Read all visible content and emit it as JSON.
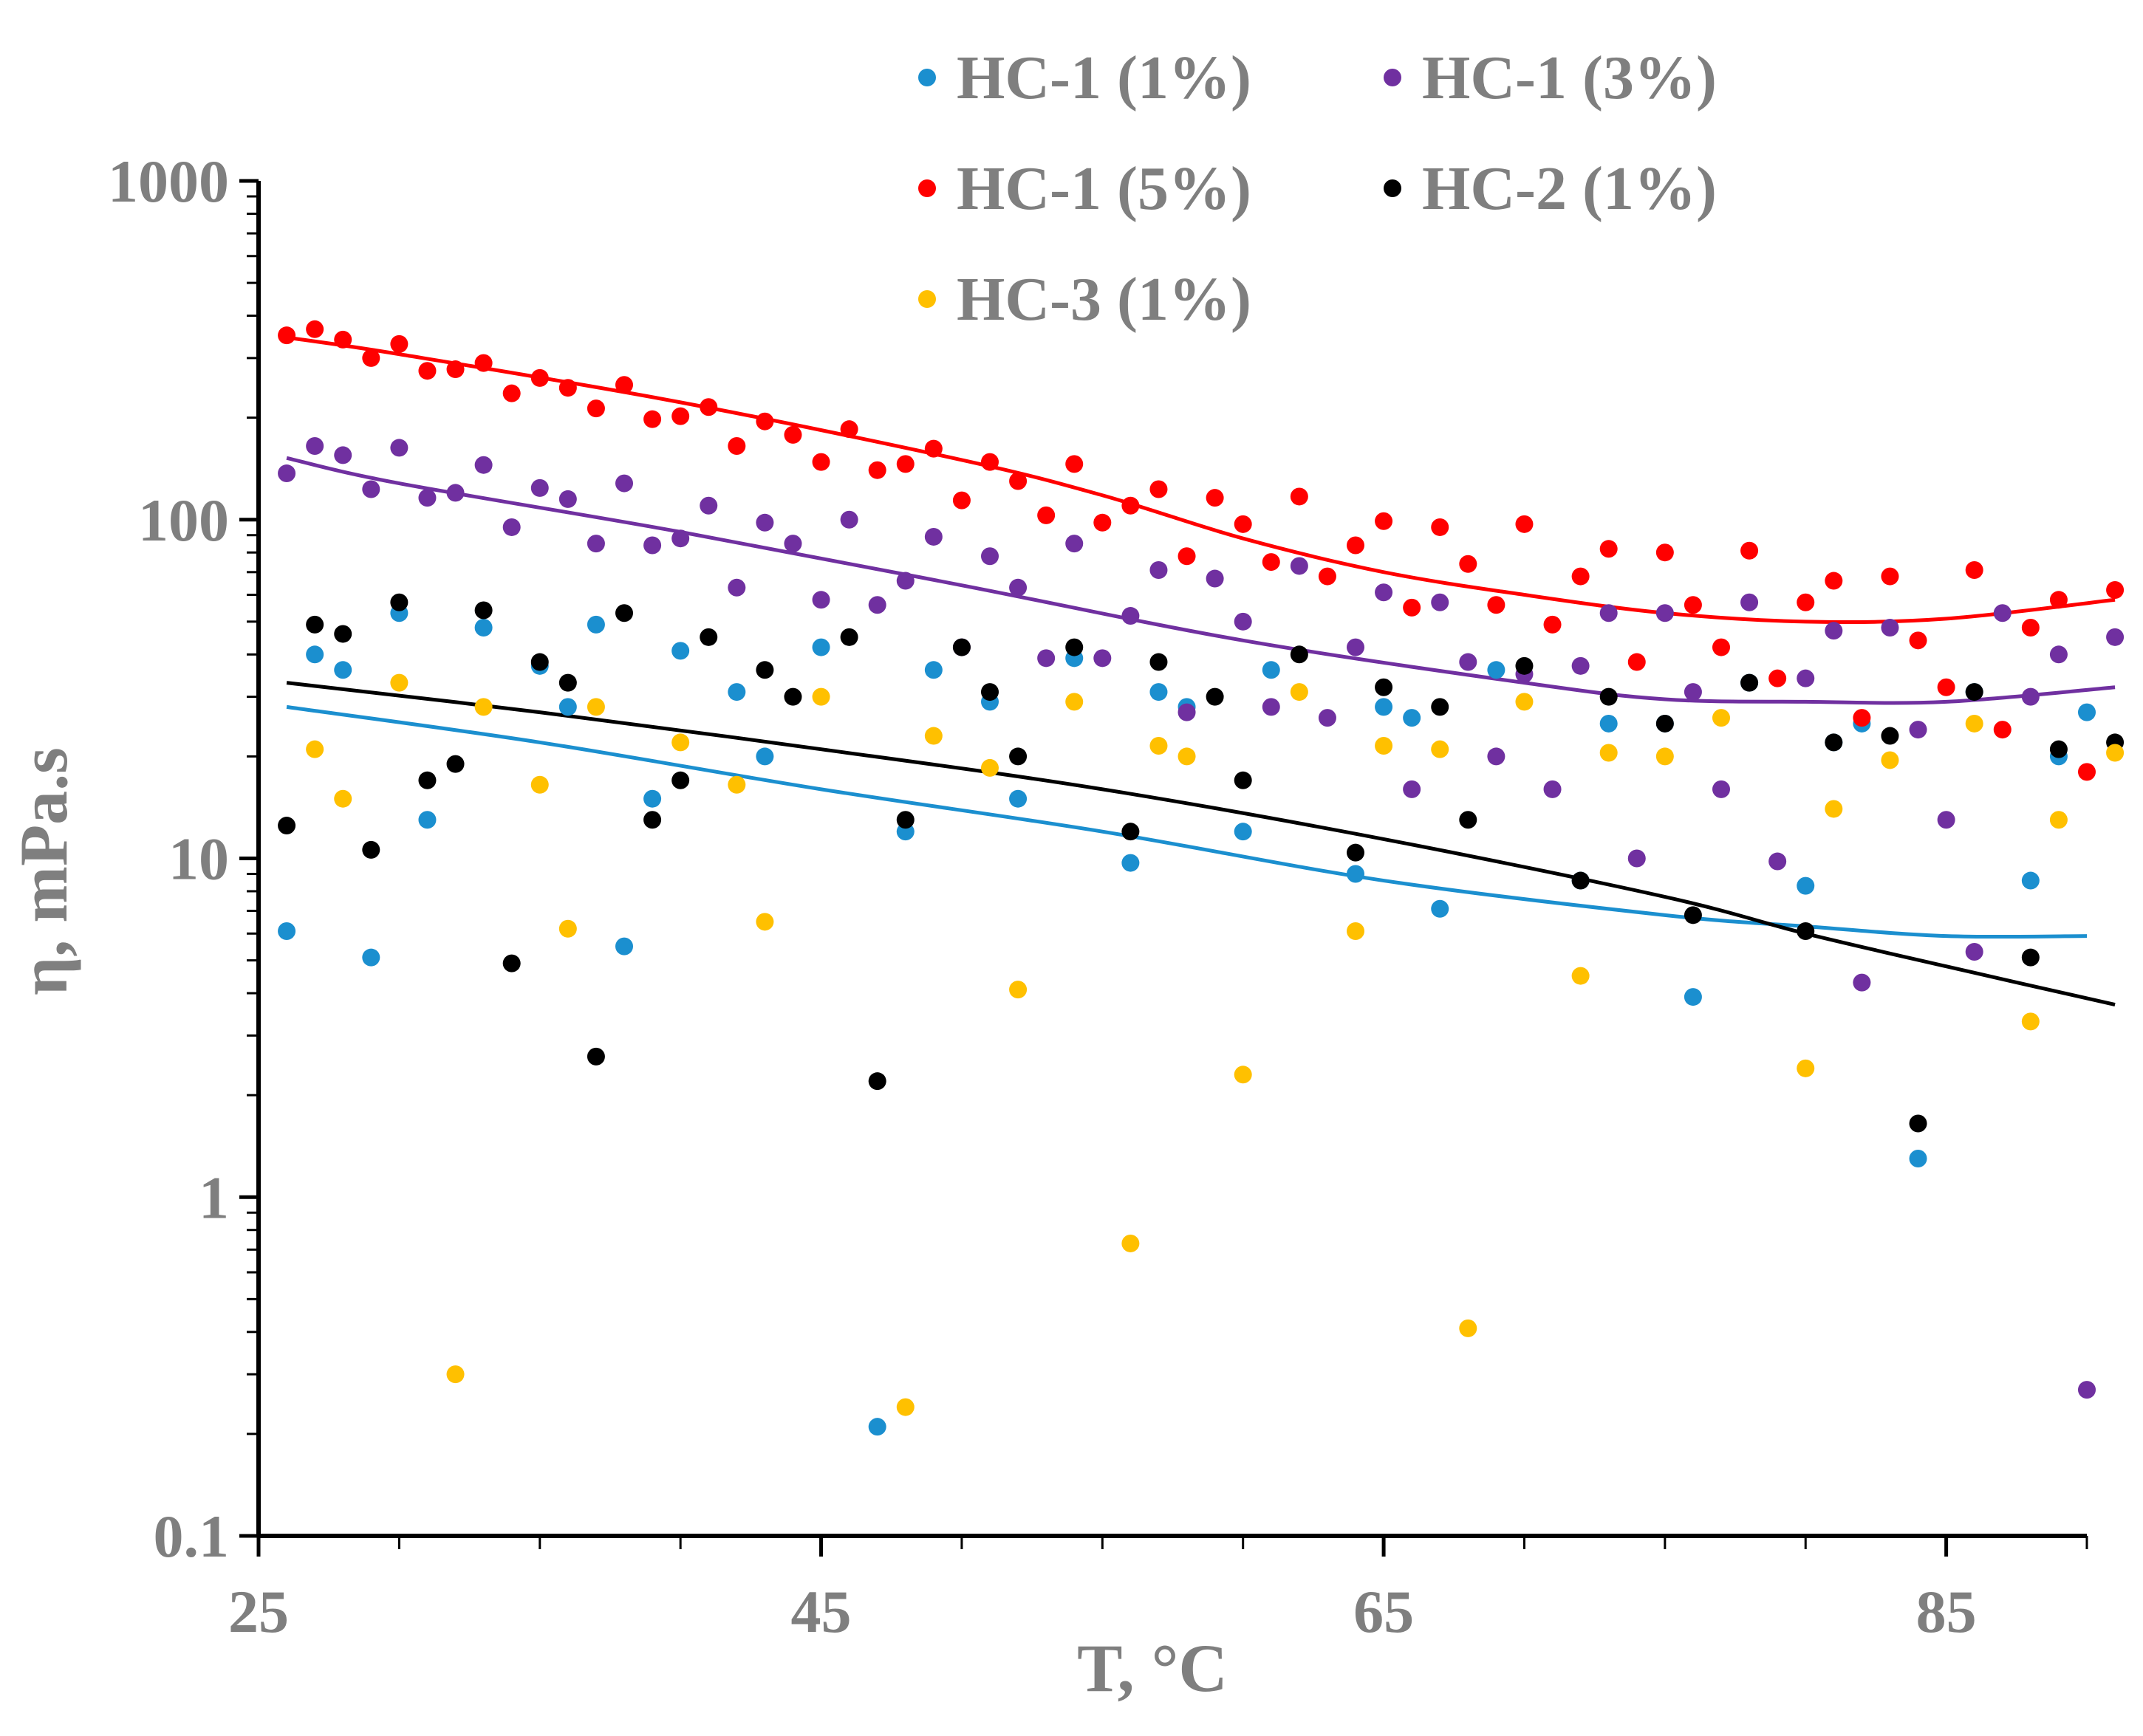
{
  "chart_data": {
    "type": "scatter",
    "title": "",
    "xlabel": "T, °C",
    "ylabel": "η, mPa.s",
    "xlim": [
      25,
      90
    ],
    "ylim": [
      0.1,
      1000
    ],
    "yscale": "log",
    "x_ticks": [
      "25",
      "45",
      "65",
      "85"
    ],
    "y_ticks": [
      "0.1",
      "1",
      "10",
      "100",
      "1000"
    ],
    "legend_position": "top-right",
    "series": [
      {
        "name": "HC-1 (1%)",
        "color": "#1b8fcf",
        "points": [
          [
            26,
            6.1
          ],
          [
            27,
            40
          ],
          [
            28,
            36
          ],
          [
            29,
            5.1
          ],
          [
            30,
            53
          ],
          [
            31,
            13
          ],
          [
            33,
            48
          ],
          [
            35,
            37
          ],
          [
            36,
            28
          ],
          [
            37,
            49
          ],
          [
            38,
            5.5
          ],
          [
            39,
            15
          ],
          [
            40,
            41
          ],
          [
            42,
            31
          ],
          [
            43,
            20
          ],
          [
            45,
            42
          ],
          [
            47,
            0.21
          ],
          [
            48,
            12
          ],
          [
            49,
            36
          ],
          [
            51,
            29
          ],
          [
            52,
            15
          ],
          [
            54,
            39
          ],
          [
            56,
            9.7
          ],
          [
            57,
            31
          ],
          [
            58,
            28
          ],
          [
            60,
            12
          ],
          [
            61,
            36
          ],
          [
            64,
            9
          ],
          [
            65,
            28
          ],
          [
            66,
            26
          ],
          [
            67,
            7.1
          ],
          [
            69,
            36
          ],
          [
            72,
            8.6
          ],
          [
            73,
            25
          ],
          [
            75,
            25
          ],
          [
            76,
            3.9
          ],
          [
            78,
            33
          ],
          [
            80,
            8.3
          ],
          [
            81,
            22
          ],
          [
            82,
            25
          ],
          [
            84,
            1.3
          ],
          [
            86,
            31
          ],
          [
            88,
            8.6
          ],
          [
            89,
            20
          ],
          [
            90,
            27
          ]
        ],
        "fit": [
          [
            26,
            28
          ],
          [
            35,
            22
          ],
          [
            45,
            16
          ],
          [
            55,
            12
          ],
          [
            65,
            8.6
          ],
          [
            75,
            6.8
          ],
          [
            80,
            6.3
          ],
          [
            85,
            5.9
          ],
          [
            90,
            5.9
          ]
        ]
      },
      {
        "name": "HC-1 (3%)",
        "color": "#7030a0",
        "points": [
          [
            26,
            137
          ],
          [
            27,
            165
          ],
          [
            28,
            155
          ],
          [
            29,
            123
          ],
          [
            30,
            163
          ],
          [
            31,
            116
          ],
          [
            32,
            120
          ],
          [
            33,
            145
          ],
          [
            34,
            95
          ],
          [
            35,
            124
          ],
          [
            36,
            115
          ],
          [
            37,
            85
          ],
          [
            38,
            128
          ],
          [
            39,
            84
          ],
          [
            40,
            88
          ],
          [
            41,
            110
          ],
          [
            42,
            63
          ],
          [
            43,
            98
          ],
          [
            44,
            85
          ],
          [
            45,
            58
          ],
          [
            46,
            100
          ],
          [
            47,
            56
          ],
          [
            48,
            66
          ],
          [
            49,
            89
          ],
          [
            50,
            42
          ],
          [
            51,
            78
          ],
          [
            52,
            63
          ],
          [
            53,
            39
          ],
          [
            54,
            85
          ],
          [
            55,
            39
          ],
          [
            56,
            52
          ],
          [
            57,
            71
          ],
          [
            58,
            27
          ],
          [
            59,
            67
          ],
          [
            60,
            50
          ],
          [
            61,
            28
          ],
          [
            62,
            73
          ],
          [
            63,
            26
          ],
          [
            64,
            42
          ],
          [
            65,
            61
          ],
          [
            66,
            16
          ],
          [
            67,
            57
          ],
          [
            68,
            38
          ],
          [
            69,
            20
          ],
          [
            70,
            35
          ],
          [
            71,
            16
          ],
          [
            72,
            37
          ],
          [
            73,
            53
          ],
          [
            74,
            10
          ],
          [
            75,
            53
          ],
          [
            76,
            31
          ],
          [
            77,
            16
          ],
          [
            78,
            57
          ],
          [
            79,
            9.8
          ],
          [
            80,
            34
          ],
          [
            81,
            47
          ],
          [
            82,
            4.3
          ],
          [
            83,
            48
          ],
          [
            84,
            24
          ],
          [
            85,
            13
          ],
          [
            86,
            5.3
          ],
          [
            87,
            53
          ],
          [
            88,
            30
          ],
          [
            89,
            40
          ],
          [
            90,
            0.27
          ],
          [
            91,
            45
          ]
        ],
        "fit": [
          [
            26,
            152
          ],
          [
            30,
            128
          ],
          [
            40,
            92
          ],
          [
            50,
            64
          ],
          [
            60,
            44
          ],
          [
            70,
            33
          ],
          [
            75,
            29.5
          ],
          [
            80,
            29
          ],
          [
            85,
            29
          ],
          [
            91,
            32
          ]
        ]
      },
      {
        "name": "HC-1 (5%)",
        "color": "#ff0000",
        "points": [
          [
            26,
            350
          ],
          [
            27,
            365
          ],
          [
            28,
            340
          ],
          [
            29,
            300
          ],
          [
            30,
            330
          ],
          [
            31,
            275
          ],
          [
            32,
            278
          ],
          [
            33,
            290
          ],
          [
            34,
            236
          ],
          [
            35,
            262
          ],
          [
            36,
            245
          ],
          [
            37,
            213
          ],
          [
            38,
            250
          ],
          [
            39,
            198
          ],
          [
            40,
            202
          ],
          [
            41,
            215
          ],
          [
            42,
            165
          ],
          [
            43,
            195
          ],
          [
            44,
            178
          ],
          [
            45,
            148
          ],
          [
            46,
            185
          ],
          [
            47,
            140
          ],
          [
            48,
            146
          ],
          [
            49,
            162
          ],
          [
            50,
            114
          ],
          [
            51,
            148
          ],
          [
            52,
            130
          ],
          [
            53,
            103
          ],
          [
            54,
            146
          ],
          [
            55,
            98
          ],
          [
            56,
            110
          ],
          [
            57,
            123
          ],
          [
            58,
            78
          ],
          [
            59,
            116
          ],
          [
            60,
            97
          ],
          [
            61,
            75
          ],
          [
            62,
            117
          ],
          [
            63,
            68
          ],
          [
            64,
            84
          ],
          [
            65,
            99
          ],
          [
            66,
            55
          ],
          [
            67,
            95
          ],
          [
            68,
            74
          ],
          [
            69,
            56
          ],
          [
            70,
            97
          ],
          [
            71,
            49
          ],
          [
            72,
            68
          ],
          [
            73,
            82
          ],
          [
            74,
            38
          ],
          [
            75,
            80
          ],
          [
            76,
            56
          ],
          [
            77,
            42
          ],
          [
            78,
            81
          ],
          [
            79,
            34
          ],
          [
            80,
            57
          ],
          [
            81,
            66
          ],
          [
            82,
            26
          ],
          [
            83,
            68
          ],
          [
            84,
            44
          ],
          [
            85,
            32
          ],
          [
            86,
            71
          ],
          [
            87,
            24
          ],
          [
            88,
            48
          ],
          [
            89,
            58
          ],
          [
            90,
            18
          ],
          [
            91,
            62
          ]
        ],
        "fit": [
          [
            26,
            345
          ],
          [
            30,
            308
          ],
          [
            40,
            222
          ],
          [
            50,
            150
          ],
          [
            55,
            118
          ],
          [
            60,
            88
          ],
          [
            65,
            70
          ],
          [
            70,
            60
          ],
          [
            75,
            53
          ],
          [
            80,
            50
          ],
          [
            85,
            51
          ],
          [
            91,
            58
          ]
        ]
      },
      {
        "name": "HC-2 (1%)",
        "color": "#000000",
        "points": [
          [
            26,
            12.5
          ],
          [
            27,
            49
          ],
          [
            28,
            46
          ],
          [
            29,
            10.6
          ],
          [
            30,
            57
          ],
          [
            31,
            17
          ],
          [
            32,
            19
          ],
          [
            33,
            54
          ],
          [
            34,
            4.9
          ],
          [
            35,
            38
          ],
          [
            36,
            33
          ],
          [
            37,
            2.6
          ],
          [
            38,
            53
          ],
          [
            39,
            13
          ],
          [
            40,
            17
          ],
          [
            41,
            45
          ],
          [
            43,
            36
          ],
          [
            44,
            30
          ],
          [
            46,
            45
          ],
          [
            47,
            2.2
          ],
          [
            48,
            13
          ],
          [
            50,
            42
          ],
          [
            51,
            31
          ],
          [
            52,
            20
          ],
          [
            54,
            42
          ],
          [
            56,
            12
          ],
          [
            57,
            38
          ],
          [
            59,
            30
          ],
          [
            60,
            17
          ],
          [
            62,
            40
          ],
          [
            64,
            10.4
          ],
          [
            65,
            32
          ],
          [
            67,
            28
          ],
          [
            68,
            13
          ],
          [
            70,
            37
          ],
          [
            72,
            8.6
          ],
          [
            73,
            30
          ],
          [
            75,
            25
          ],
          [
            76,
            6.8
          ],
          [
            78,
            33
          ],
          [
            80,
            6.1
          ],
          [
            81,
            22
          ],
          [
            83,
            23
          ],
          [
            84,
            1.65
          ],
          [
            86,
            31
          ],
          [
            88,
            5.1
          ],
          [
            89,
            21
          ],
          [
            91,
            22
          ]
        ],
        "fit": [
          [
            26,
            33
          ],
          [
            35,
            27
          ],
          [
            45,
            21
          ],
          [
            55,
            16
          ],
          [
            65,
            11.4
          ],
          [
            75,
            7.7
          ],
          [
            80,
            6
          ],
          [
            85,
            4.8
          ],
          [
            91,
            3.7
          ]
        ]
      },
      {
        "name": "HC-3 (1%)",
        "color": "#ffc000",
        "points": [
          [
            27,
            21
          ],
          [
            28,
            15
          ],
          [
            30,
            33
          ],
          [
            32,
            0.3
          ],
          [
            33,
            28
          ],
          [
            35,
            16.5
          ],
          [
            36,
            6.2
          ],
          [
            37,
            28
          ],
          [
            40,
            22
          ],
          [
            42,
            16.5
          ],
          [
            43,
            6.5
          ],
          [
            45,
            30
          ],
          [
            48,
            0.24
          ],
          [
            49,
            23
          ],
          [
            51,
            18.5
          ],
          [
            52,
            4.1
          ],
          [
            54,
            29
          ],
          [
            56,
            0.73
          ],
          [
            57,
            21.5
          ],
          [
            58,
            20
          ],
          [
            60,
            2.3
          ],
          [
            62,
            31
          ],
          [
            64,
            6.1
          ],
          [
            65,
            21.5
          ],
          [
            67,
            21
          ],
          [
            68,
            0.41
          ],
          [
            70,
            29
          ],
          [
            72,
            4.5
          ],
          [
            73,
            20.5
          ],
          [
            75,
            20
          ],
          [
            77,
            26
          ],
          [
            80,
            2.4
          ],
          [
            81,
            14
          ],
          [
            83,
            19.5
          ],
          [
            86,
            25
          ],
          [
            88,
            3.3
          ],
          [
            89,
            13
          ],
          [
            91,
            20.5
          ]
        ]
      }
    ]
  }
}
